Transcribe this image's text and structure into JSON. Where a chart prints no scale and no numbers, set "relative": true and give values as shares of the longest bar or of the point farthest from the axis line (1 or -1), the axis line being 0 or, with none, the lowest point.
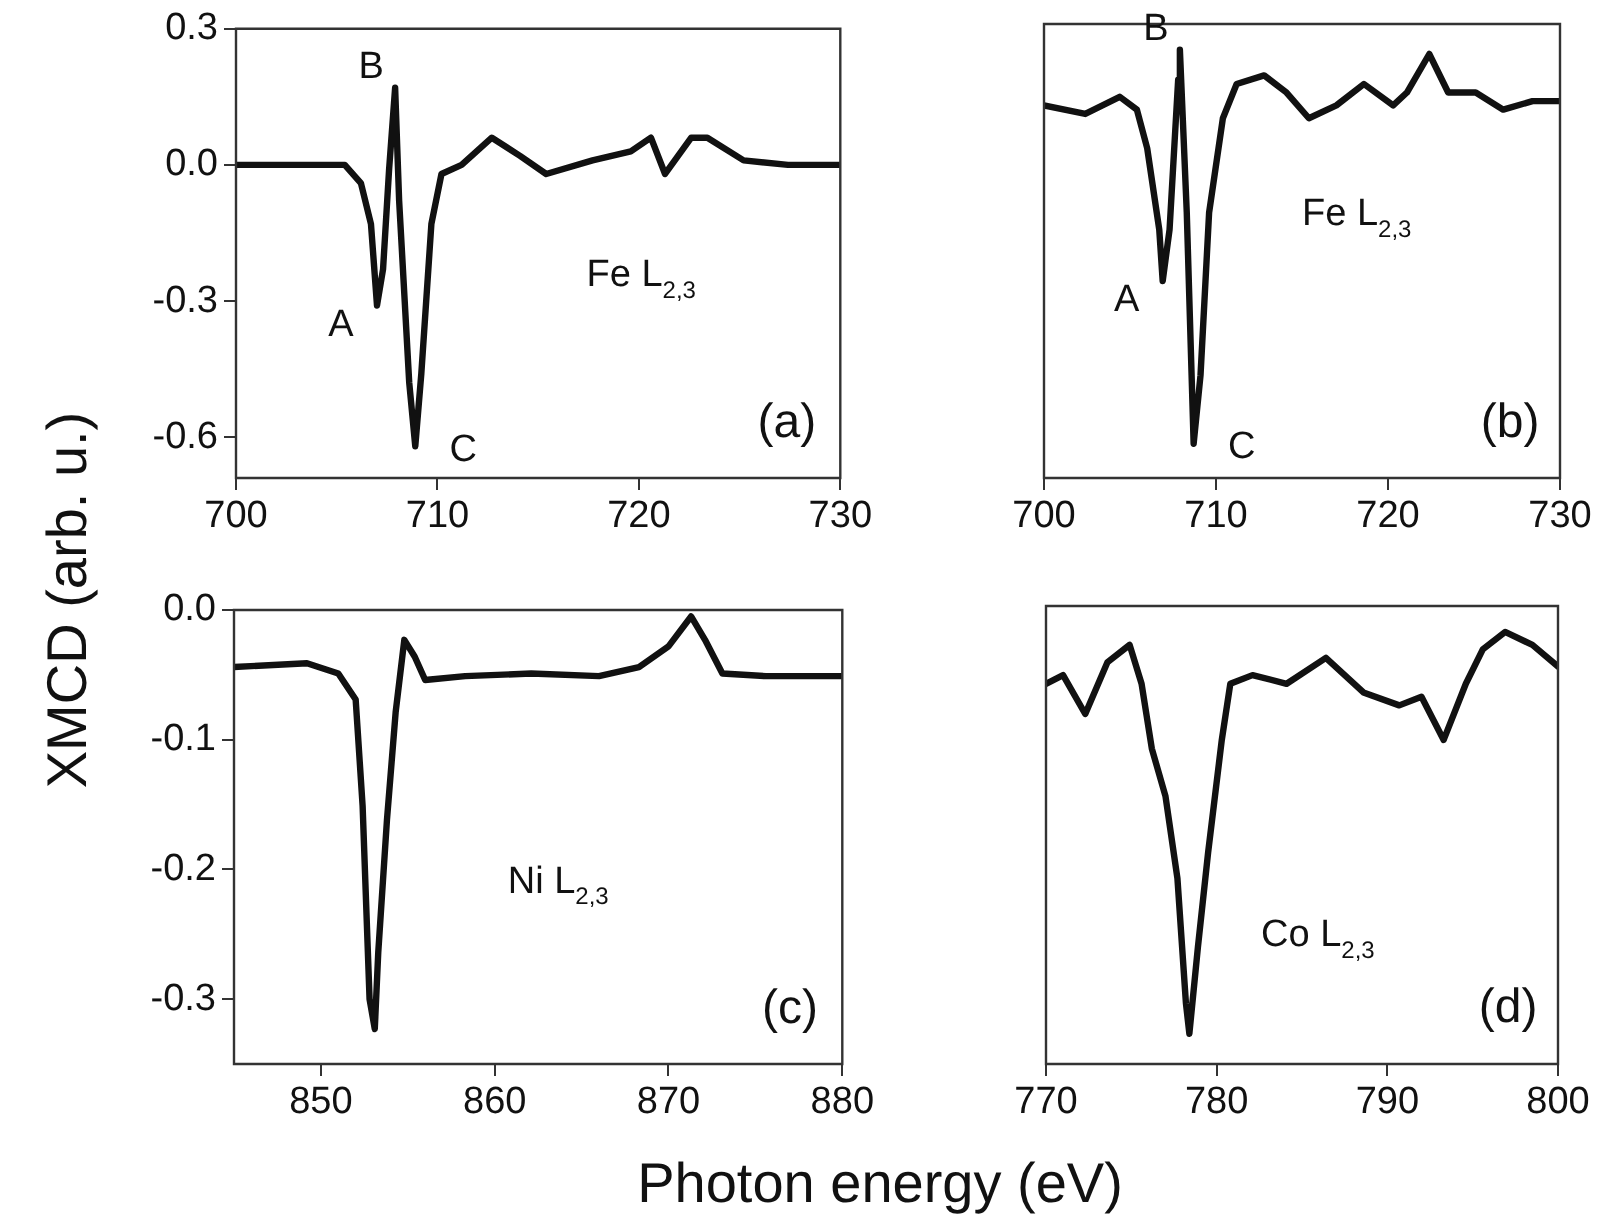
{
  "chart_data": [
    {
      "type": "line",
      "ylabel": "XMCD (arb. u.)",
      "x": [
        700,
        702.4,
        705.4,
        706.2,
        706.7,
        707.0,
        707.3,
        707.6,
        707.9,
        708.1,
        708.6,
        708.9,
        709.2,
        709.7,
        710.2,
        711.2,
        712.7,
        714.1,
        715.4,
        717.7,
        719.6,
        720.6,
        721.3,
        722.6,
        723.4,
        725.2,
        727.4,
        730
      ],
      "series": [
        {
          "color": "#111111",
          "values": [
            0,
            0,
            0,
            -0.04,
            -0.13,
            -0.31,
            -0.23,
            -0.01,
            0.17,
            -0.08,
            -0.48,
            -0.62,
            -0.46,
            -0.13,
            -0.02,
            0,
            0.06,
            0.02,
            -0.02,
            0.01,
            0.03,
            0.06,
            -0.02,
            0.06,
            0.06,
            0.01,
            0,
            0
          ]
        }
      ],
      "xlim": [
        700,
        730
      ],
      "xticks": [
        700,
        710,
        720,
        730
      ],
      "ylim": [
        -0.69,
        0.3
      ],
      "yticks": [
        {
          "value": 0.3,
          "label": "0.3"
        },
        {
          "value": 0,
          "label": "0.0"
        },
        {
          "value": -0.3,
          "label": "-0.3"
        },
        {
          "value": -0.6,
          "label": "-0.6"
        }
      ],
      "grid": false,
      "legend": false,
      "marker": "none",
      "line_style": "solid",
      "annotations": [
        {
          "text": "A",
          "x": 707.0,
          "y": -0.31
        },
        {
          "text": "B",
          "x": 707.9,
          "y": 0.17
        },
        {
          "text": "C",
          "x": 708.9,
          "y": -0.62
        },
        "Fe L$_{2,3}$",
        "(a)"
      ]
    },
    {
      "type": "line",
      "relative": true,
      "x": [
        700,
        702.4,
        704.4,
        705.4,
        706.0,
        706.7,
        706.9,
        707.3,
        707.8,
        707.9,
        708.3,
        708.7,
        709.1,
        709.6,
        710.4,
        711.2,
        712.8,
        714.1,
        715.4,
        717.0,
        718.6,
        720.3,
        721.1,
        722.4,
        723.5,
        725.1,
        726.7,
        728.4,
        730
      ],
      "series": [
        {
          "color": "#111111",
          "values": [
            0.87,
            0.85,
            0.89,
            0.86,
            0.77,
            0.58,
            0.46,
            0.58,
            0.93,
            1.0,
            0.62,
            0.08,
            0.24,
            0.62,
            0.84,
            0.92,
            0.94,
            0.9,
            0.84,
            0.87,
            0.92,
            0.87,
            0.9,
            0.99,
            0.9,
            0.9,
            0.86,
            0.88,
            0.88
          ]
        }
      ],
      "xlim": [
        700,
        730
      ],
      "xticks": [
        700,
        710,
        720,
        730
      ],
      "grid": false,
      "legend": false,
      "marker": "none",
      "line_style": "solid",
      "annotations": [
        {
          "text": "A",
          "x": 706.9,
          "y": 0.46
        },
        {
          "text": "B",
          "x": 707.9,
          "y": 1.0
        },
        {
          "text": "C",
          "x": 708.7,
          "y": 0.08
        },
        "Fe L$_{2,3}$",
        "(b)"
      ]
    },
    {
      "type": "line",
      "xlabel": "Photon energy (eV)",
      "x": [
        845,
        849.2,
        851.0,
        852.0,
        852.4,
        852.8,
        853.1,
        853.3,
        853.8,
        854.3,
        854.8,
        855.4,
        856.0,
        858.3,
        862.1,
        866.0,
        868.3,
        870.0,
        871.3,
        872.1,
        873.1,
        875.6,
        880
      ],
      "series": [
        {
          "color": "#111111",
          "values": [
            -0.044,
            -0.041,
            -0.049,
            -0.069,
            -0.151,
            -0.3,
            -0.323,
            -0.264,
            -0.162,
            -0.079,
            -0.023,
            -0.036,
            -0.054,
            -0.051,
            -0.049,
            -0.051,
            -0.044,
            -0.028,
            -0.005,
            -0.023,
            -0.049,
            -0.051,
            -0.051
          ]
        }
      ],
      "xlim": [
        845,
        880
      ],
      "xticks": [
        850,
        860,
        870,
        880
      ],
      "ylim": [
        -0.35,
        0
      ],
      "yticks": [
        {
          "value": 0,
          "label": "0.0"
        },
        {
          "value": -0.1,
          "label": "-0.1"
        },
        {
          "value": -0.2,
          "label": "-0.2"
        },
        {
          "value": -0.3,
          "label": "-0.3"
        }
      ],
      "grid": false,
      "legend": false,
      "marker": "none",
      "line_style": "solid",
      "annotations": [
        "Ni L$_{2,3}$",
        "(c)"
      ]
    },
    {
      "type": "line",
      "relative": true,
      "x": [
        770,
        771,
        772.3,
        773.6,
        774.9,
        775.6,
        776.2,
        777.0,
        777.7,
        778.2,
        778.4,
        778.9,
        779.5,
        780.3,
        780.8,
        782.1,
        784.1,
        786.4,
        788.6,
        790.7,
        792.0,
        793.3,
        794.6,
        795.6,
        796.9,
        798.5,
        800
      ],
      "series": [
        {
          "color": "#111111",
          "values": [
            0.88,
            0.9,
            0.81,
            0.93,
            0.97,
            0.88,
            0.73,
            0.62,
            0.43,
            0.14,
            0.07,
            0.27,
            0.49,
            0.75,
            0.88,
            0.9,
            0.88,
            0.94,
            0.86,
            0.83,
            0.85,
            0.75,
            0.88,
            0.96,
            1.0,
            0.97,
            0.92
          ]
        }
      ],
      "xlim": [
        770,
        800
      ],
      "xticks": [
        770,
        780,
        790,
        800
      ],
      "grid": false,
      "legend": false,
      "marker": "none",
      "line_style": "solid",
      "annotations": [
        "Co L$_{2,3}$",
        "(d)"
      ]
    }
  ]
}
